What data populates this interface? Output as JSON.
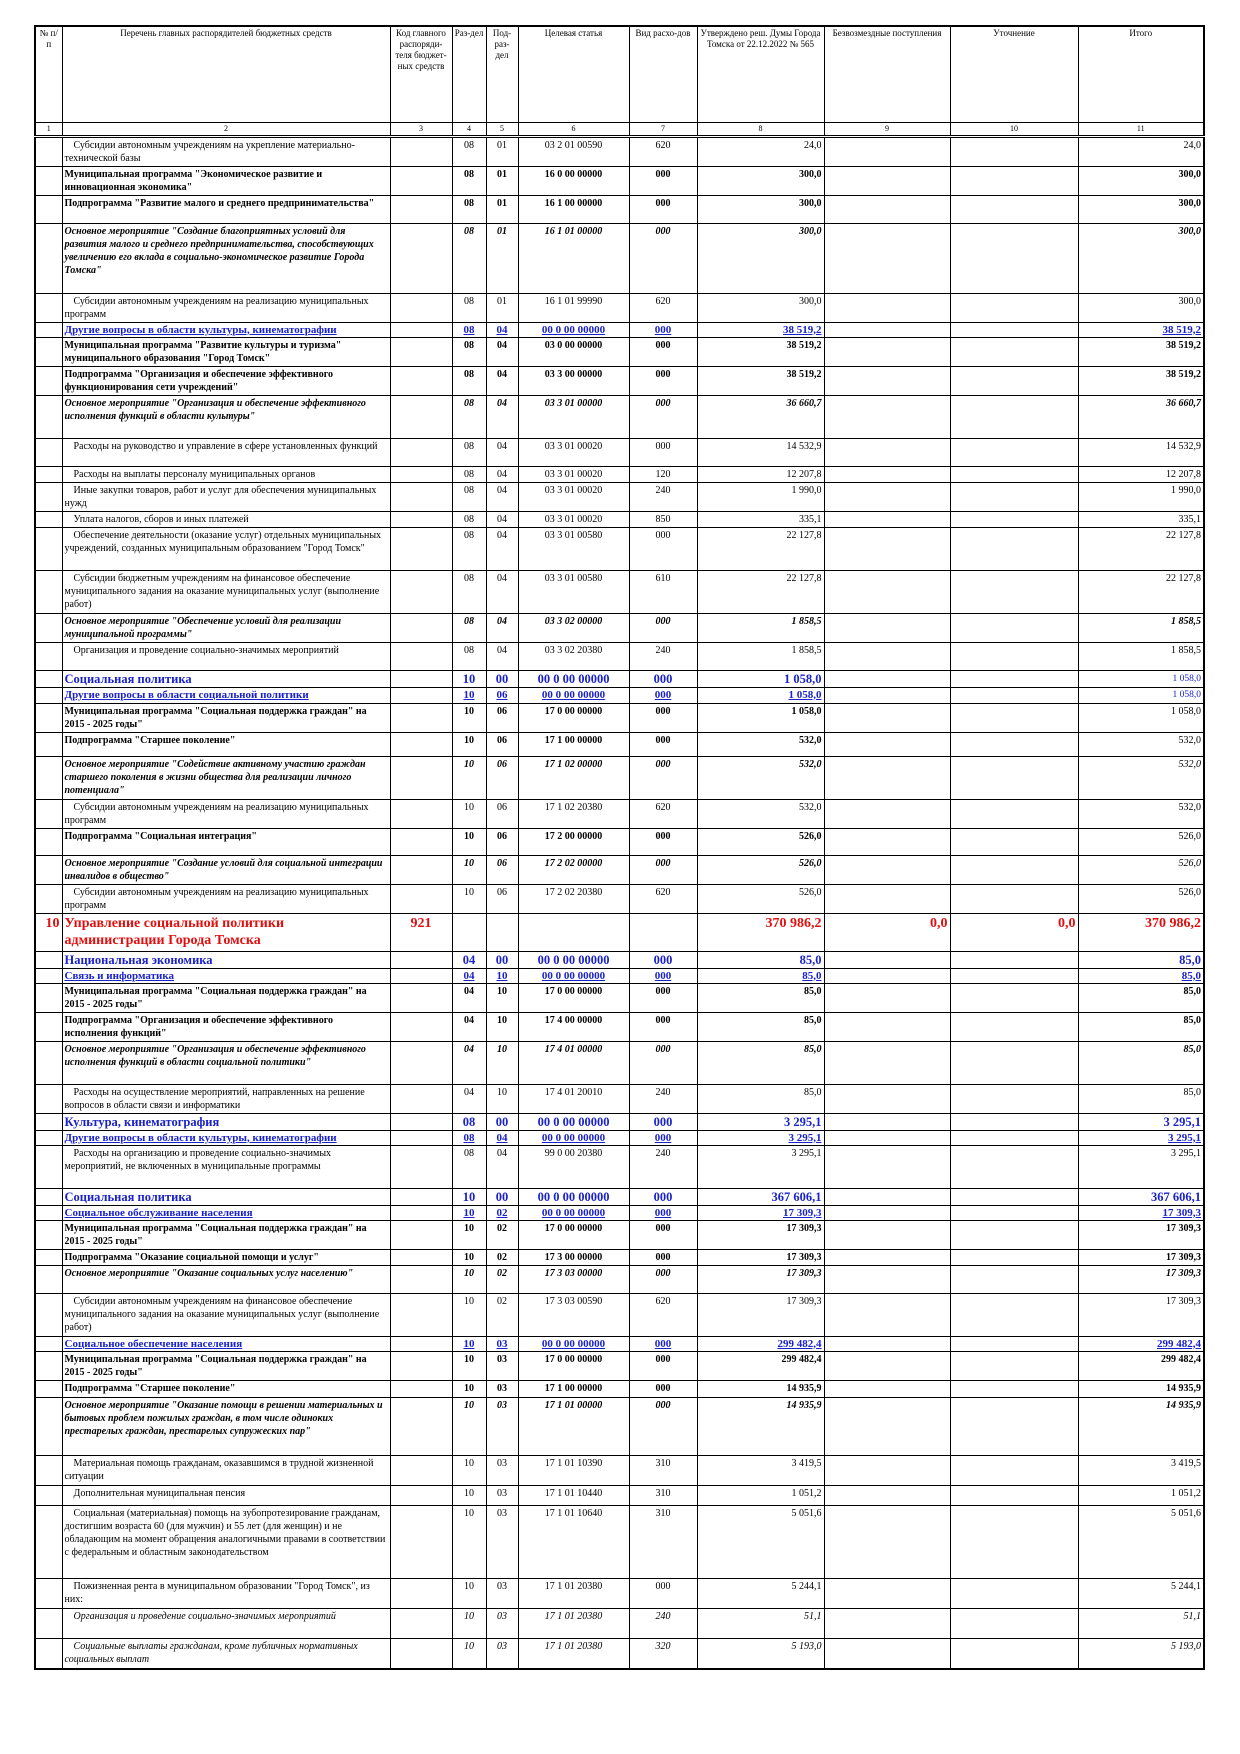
{
  "table": {
    "header": [
      "№ п/п",
      "Перечень главных распорядителей бюджетных средств",
      "Код главного распоряди-теля бюджет-ных средств",
      "Раз-дел",
      "Под-раз-дел",
      "Целевая статья",
      "Вид расхо-дов",
      "Утверждено реш. Думы Города Томска от 22.12.2022 № 565",
      "Безвозмездные поступления",
      "Уточнение",
      "Итого"
    ],
    "column_numbers": [
      "1",
      "2",
      "3",
      "4",
      "5",
      "6",
      "7",
      "8",
      "9",
      "10",
      "11"
    ],
    "rows": [
      [
        null,
        "Субсидии автономным учреждениям на укрепление материально-технической базы",
        null,
        "08",
        "01",
        "03 2 01 00590",
        "620",
        "24,0",
        null,
        null,
        "24,0"
      ],
      [
        null,
        "Муниципальная программа \"Экономическое развитие и инновационная экономика\"",
        null,
        "08",
        "01",
        "16 0 00 00000",
        "000",
        "300,0",
        null,
        null,
        "300,0"
      ],
      [
        null,
        "Подпрограмма \"Развитие малого и среднего предпринимательства\"",
        null,
        "08",
        "01",
        "16 1 00 00000",
        "000",
        "300,0",
        null,
        null,
        "300,0"
      ],
      [
        null,
        "Основное мероприятие \"Создание благоприятных условий для развития малого и среднего предпринимательства, способствующих увеличению его вклада в социально-экономическое развитие Города Томска\"",
        null,
        "08",
        "01",
        "16 1 01 00000",
        "000",
        "300,0",
        null,
        null,
        "300,0"
      ],
      [
        null,
        "Субсидии автономным учреждениям на реализацию муниципальных программ",
        null,
        "08",
        "01",
        "16 1 01 99990",
        "620",
        "300,0",
        null,
        null,
        "300,0"
      ],
      [
        null,
        "Другие вопросы в области культуры, кинематографии",
        null,
        "08",
        "04",
        "00 0 00 00000",
        "000",
        "38 519,2",
        null,
        null,
        "38 519,2"
      ],
      [
        null,
        "Муниципальная программа \"Развитие культуры и туризма\" муниципального образования \"Город Томск\"",
        null,
        "08",
        "04",
        "03 0 00 00000",
        "000",
        "38 519,2",
        null,
        null,
        "38 519,2"
      ],
      [
        null,
        "Подпрограмма \"Организация и обеспечение эффективного функционирования сети учреждений\"",
        null,
        "08",
        "04",
        "03 3 00 00000",
        "000",
        "38 519,2",
        null,
        null,
        "38 519,2"
      ],
      [
        null,
        "Основное мероприятие \"Организация и обеспечение эффективного исполнения функций в области культуры\"",
        null,
        "08",
        "04",
        "03 3 01 00000",
        "000",
        "36 660,7",
        null,
        null,
        "36 660,7"
      ],
      [
        null,
        "Расходы на руководство и управление в сфере установленных функций",
        null,
        "08",
        "04",
        "03 3 01 00020",
        "000",
        "14 532,9",
        null,
        null,
        "14 532,9"
      ],
      [
        null,
        "Расходы на выплаты персоналу муниципальных органов",
        null,
        "08",
        "04",
        "03 3 01 00020",
        "120",
        "12 207,8",
        null,
        null,
        "12 207,8"
      ],
      [
        null,
        "Иные закупки товаров, работ и услуг для обеспечения муниципальных нужд",
        null,
        "08",
        "04",
        "03 3 01 00020",
        "240",
        "1 990,0",
        null,
        null,
        "1 990,0"
      ],
      [
        null,
        "Уплата налогов, сборов и иных платежей",
        null,
        "08",
        "04",
        "03 3 01 00020",
        "850",
        "335,1",
        null,
        null,
        "335,1"
      ],
      [
        null,
        "Обеспечение деятельности (оказание услуг) отдельных муниципальных учреждений, созданных муниципальным образованием \"Город Томск\"",
        null,
        "08",
        "04",
        "03 3 01 00580",
        "000",
        "22 127,8",
        null,
        null,
        "22 127,8"
      ],
      [
        null,
        "Субсидии бюджетным учреждениям на финансовое обеспечение муниципального задания на оказание муниципальных услуг (выполнение работ)",
        null,
        "08",
        "04",
        "03 3 01 00580",
        "610",
        "22 127,8",
        null,
        null,
        "22 127,8"
      ],
      [
        null,
        "Основное мероприятие \"Обеспечение условий для реализации муниципальной программы\"",
        null,
        "08",
        "04",
        "03 3 02 00000",
        "000",
        "1 858,5",
        null,
        null,
        "1 858,5"
      ],
      [
        null,
        "Организация и проведение социально-значимых мероприятий",
        null,
        "08",
        "04",
        "03 3 02 20380",
        "240",
        "1 858,5",
        null,
        null,
        "1 858,5"
      ],
      [
        null,
        "Социальная политика",
        null,
        "10",
        "00",
        "00 0 00 00000",
        "000",
        "1 058,0",
        null,
        null,
        "1 058,0"
      ],
      [
        null,
        "Другие вопросы в области социальной политики",
        null,
        "10",
        "06",
        "00 0 00 00000",
        "000",
        "1 058,0",
        null,
        null,
        "1 058,0"
      ],
      [
        null,
        "Муниципальная программа \"Социальная поддержка граждан\" на 2015 - 2025 годы\"",
        null,
        "10",
        "06",
        "17 0 00 00000",
        "000",
        "1 058,0",
        null,
        null,
        "1 058,0"
      ],
      [
        null,
        "Подпрограмма \"Старшее поколение\"",
        null,
        "10",
        "06",
        "17 1 00 00000",
        "000",
        "532,0",
        null,
        null,
        "532,0"
      ],
      [
        null,
        "Основное мероприятие \"Содействие активному участию граждан старшего поколения в жизни общества для реализации личного потенциала\"",
        null,
        "10",
        "06",
        "17 1 02 00000",
        "000",
        "532,0",
        null,
        null,
        "532,0"
      ],
      [
        null,
        "Субсидии автономным учреждениям на реализацию муниципальных программ",
        null,
        "10",
        "06",
        "17 1 02 20380",
        "620",
        "532,0",
        null,
        null,
        "532,0"
      ],
      [
        null,
        "Подпрограмма \"Социальная интеграция\"",
        null,
        "10",
        "06",
        "17 2 00 00000",
        "000",
        "526,0",
        null,
        null,
        "526,0"
      ],
      [
        null,
        "Основное мероприятие \"Создание условий для социальной интеграции инвалидов в общество\"",
        null,
        "10",
        "06",
        "17 2 02 00000",
        "000",
        "526,0",
        null,
        null,
        "526,0"
      ],
      [
        null,
        "Субсидии автономным учреждениям на реализацию муниципальных программ",
        null,
        "10",
        "06",
        "17 2 02 20380",
        "620",
        "526,0",
        null,
        null,
        "526,0"
      ],
      [
        "10",
        "Управление социальной политики администрации Города Томска",
        "921",
        null,
        null,
        null,
        null,
        "370 986,2",
        "0,0",
        "0,0",
        "370 986,2"
      ],
      [
        null,
        "Национальная экономика",
        null,
        "04",
        "00",
        "00 0 00 00000",
        "000",
        "85,0",
        null,
        null,
        "85,0"
      ],
      [
        null,
        "Связь и информатика",
        null,
        "04",
        "10",
        "00 0 00 00000",
        "000",
        "85,0",
        null,
        null,
        "85,0"
      ],
      [
        null,
        "Муниципальная программа \"Социальная поддержка граждан\" на 2015 - 2025 годы\"",
        null,
        "04",
        "10",
        "17 0 00 00000",
        "000",
        "85,0",
        null,
        null,
        "85,0"
      ],
      [
        null,
        "Подпрограмма \"Организация и обеспечение эффективного исполнения функций\"",
        null,
        "04",
        "10",
        "17 4 00 00000",
        "000",
        "85,0",
        null,
        null,
        "85,0"
      ],
      [
        null,
        "Основное мероприятие \"Организация и обеспечение эффективного исполнения функций в области социальной политики\"",
        null,
        "04",
        "10",
        "17 4 01 00000",
        "000",
        "85,0",
        null,
        null,
        "85,0"
      ],
      [
        null,
        "Расходы на осуществление мероприятий, направленных на решение вопросов в области связи и информатики",
        null,
        "04",
        "10",
        "17 4 01 20010",
        "240",
        "85,0",
        null,
        null,
        "85,0"
      ],
      [
        null,
        "Культура, кинематография",
        null,
        "08",
        "00",
        "00 0 00 00000",
        "000",
        "3 295,1",
        null,
        null,
        "3 295,1"
      ],
      [
        null,
        "Другие вопросы в области культуры, кинематографии",
        null,
        "08",
        "04",
        "00 0 00 00000",
        "000",
        "3 295,1",
        null,
        null,
        "3 295,1"
      ],
      [
        null,
        "Расходы на организацию и проведение социально-значимых мероприятий, не включенных в муниципальные программы",
        null,
        "08",
        "04",
        "99 0 00 20380",
        "240",
        "3 295,1",
        null,
        null,
        "3 295,1"
      ],
      [
        null,
        "Социальная политика",
        null,
        "10",
        "00",
        "00 0 00 00000",
        "000",
        "367 606,1",
        null,
        null,
        "367 606,1"
      ],
      [
        null,
        "Социальное обслуживание населения",
        null,
        "10",
        "02",
        "00 0 00 00000",
        "000",
        "17 309,3",
        null,
        null,
        "17 309,3"
      ],
      [
        null,
        "Муниципальная программа \"Социальная поддержка граждан\" на 2015 - 2025 годы\"",
        null,
        "10",
        "02",
        "17 0 00 00000",
        "000",
        "17 309,3",
        null,
        null,
        "17 309,3"
      ],
      [
        null,
        "Подпрограмма \"Оказание социальной помощи и услуг\"",
        null,
        "10",
        "02",
        "17 3 00 00000",
        "000",
        "17 309,3",
        null,
        null,
        "17 309,3"
      ],
      [
        null,
        "Основное мероприятие \"Оказание социальных услуг населению\"",
        null,
        "10",
        "02",
        "17 3 03 00000",
        "000",
        "17 309,3",
        null,
        null,
        "17 309,3"
      ],
      [
        null,
        "Субсидии автономным учреждениям на финансовое обеспечение муниципального задания на оказание муниципальных услуг (выполнение работ)",
        null,
        "10",
        "02",
        "17 3 03 00590",
        "620",
        "17 309,3",
        null,
        null,
        "17 309,3"
      ],
      [
        null,
        "Социальное обеспечение населения",
        null,
        "10",
        "03",
        "00 0 00 00000",
        "000",
        "299 482,4",
        null,
        null,
        "299 482,4"
      ],
      [
        null,
        "Муниципальная программа \"Социальная поддержка граждан\" на 2015 - 2025 годы\"",
        null,
        "10",
        "03",
        "17 0 00 00000",
        "000",
        "299 482,4",
        null,
        null,
        "299 482,4"
      ],
      [
        null,
        "Подпрограмма \"Старшее поколение\"",
        null,
        "10",
        "03",
        "17 1 00 00000",
        "000",
        "14 935,9",
        null,
        null,
        "14 935,9"
      ],
      [
        null,
        "Основное мероприятие \"Оказание помощи в решении материальных и бытовых проблем пожилых граждан, в том числе одиноких престарелых граждан, престарелых супружеских пар\"",
        null,
        "10",
        "03",
        "17 1 01 00000",
        "000",
        "14 935,9",
        null,
        null,
        "14 935,9"
      ],
      [
        null,
        "Материальная помощь гражданам, оказавшимся в трудной жизненной ситуации",
        null,
        "10",
        "03",
        "17 1 01 10390",
        "310",
        "3 419,5",
        null,
        null,
        "3 419,5"
      ],
      [
        null,
        "Дополнительная муниципальная пенсия",
        null,
        "10",
        "03",
        "17 1 01 10440",
        "310",
        "1 051,2",
        null,
        null,
        "1 051,2"
      ],
      [
        null,
        "Социальная (материальная) помощь на зубопротезирование гражданам, достигшим возраста 60 (для мужчин) и 55 лет (для женщин) и не обладающим на момент обращения аналогичными правами в соответствии с федеральным и областным законодательством",
        null,
        "10",
        "03",
        "17 1 01 10640",
        "310",
        "5 051,6",
        null,
        null,
        "5 051,6"
      ],
      [
        null,
        "Пожизненная рента в муниципальном образовании \"Город Томск\", из них:",
        null,
        "10",
        "03",
        "17 1 01 20380",
        "000",
        "5 244,1",
        null,
        null,
        "5 244,1"
      ],
      [
        null,
        "Организация и проведение социально-значимых мероприятий",
        null,
        "10",
        "03",
        "17 1 01 20380",
        "240",
        "51,1",
        null,
        null,
        "51,1"
      ],
      [
        null,
        "Социальные выплаты гражданам, кроме публичных нормативных социальных выплат",
        null,
        "10",
        "03",
        "17 1 01 20380",
        "320",
        "5 193,0",
        null,
        null,
        "5 193,0"
      ]
    ]
  }
}
